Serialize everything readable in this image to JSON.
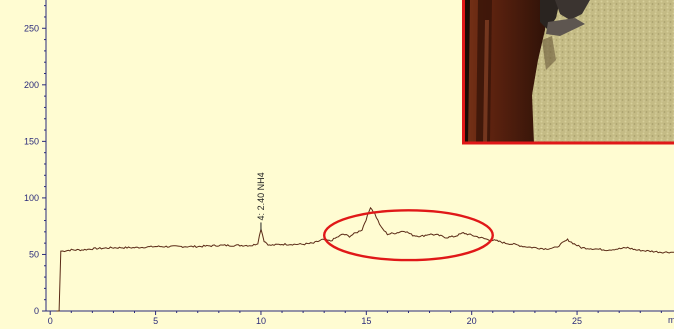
{
  "colors": {
    "plot_background": "#fffcd2",
    "trace": "#5a2a16",
    "axis_tick": "#2a2a7a",
    "highlight_ellipse": "#e01818",
    "inset_border": "#e01818"
  },
  "inset_photo": {
    "description_icon": "photo-inset",
    "colors": [
      "#3a1a0e",
      "#6b3018",
      "#c9c08a",
      "#a8a070"
    ]
  },
  "chart_data": {
    "type": "line",
    "title": "",
    "xlabel": "",
    "ylabel": "",
    "x_unit_partial": "m",
    "xlim": [
      -0.2,
      29.6
    ],
    "ylim": [
      0,
      275
    ],
    "xticks": [
      0,
      5,
      10,
      15,
      20,
      25
    ],
    "yticks": [
      0,
      50,
      100,
      150,
      200,
      250
    ],
    "grid": false,
    "peak_annotation": {
      "x": 10.0,
      "y": 73,
      "text": "4: 2.40 NH4"
    },
    "highlight_region": {
      "x_center": 17.0,
      "x_halfwidth": 4.0,
      "y_center": 67,
      "y_halfwidth": 22
    },
    "series": [
      {
        "values": [
          [
            0.3,
            0
          ],
          [
            0.42,
            0
          ],
          [
            0.5,
            53
          ],
          [
            0.6,
            53
          ],
          [
            1.0,
            54
          ],
          [
            1.5,
            54
          ],
          [
            2.0,
            55
          ],
          [
            3.0,
            56
          ],
          [
            4.0,
            56
          ],
          [
            5.0,
            57
          ],
          [
            6.0,
            57
          ],
          [
            7.0,
            57
          ],
          [
            8.0,
            58
          ],
          [
            9.0,
            58
          ],
          [
            9.6,
            58
          ],
          [
            9.85,
            60
          ],
          [
            10.0,
            73
          ],
          [
            10.15,
            62
          ],
          [
            10.4,
            58
          ],
          [
            11.0,
            59
          ],
          [
            12.0,
            59
          ],
          [
            12.5,
            60
          ],
          [
            12.9,
            63
          ],
          [
            13.3,
            62
          ],
          [
            13.6,
            65
          ],
          [
            13.9,
            68
          ],
          [
            14.2,
            66
          ],
          [
            14.5,
            69
          ],
          [
            14.8,
            72
          ],
          [
            15.05,
            84
          ],
          [
            15.2,
            92
          ],
          [
            15.4,
            86
          ],
          [
            15.7,
            74
          ],
          [
            16.0,
            68
          ],
          [
            16.4,
            69
          ],
          [
            16.8,
            71
          ],
          [
            17.2,
            67
          ],
          [
            17.6,
            66
          ],
          [
            18.0,
            68
          ],
          [
            18.4,
            67
          ],
          [
            18.8,
            65
          ],
          [
            19.2,
            66
          ],
          [
            19.6,
            69
          ],
          [
            20.0,
            67
          ],
          [
            20.4,
            65
          ],
          [
            20.8,
            63
          ],
          [
            21.2,
            62
          ],
          [
            21.6,
            60
          ],
          [
            22.0,
            59
          ],
          [
            22.5,
            57
          ],
          [
            23.0,
            56
          ],
          [
            23.5,
            55
          ],
          [
            24.0,
            56
          ],
          [
            24.3,
            60
          ],
          [
            24.55,
            63
          ],
          [
            24.8,
            60
          ],
          [
            25.2,
            56
          ],
          [
            25.8,
            55
          ],
          [
            26.4,
            54
          ],
          [
            27.0,
            55
          ],
          [
            27.4,
            56
          ],
          [
            27.8,
            54
          ],
          [
            28.4,
            53
          ],
          [
            29.0,
            52
          ],
          [
            29.6,
            52
          ]
        ]
      }
    ]
  }
}
